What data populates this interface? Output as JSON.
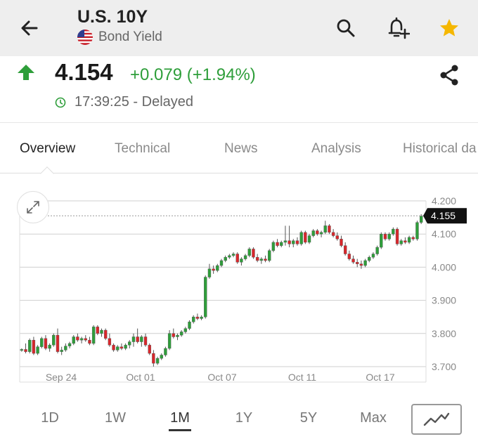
{
  "header": {
    "title": "U.S. 10Y",
    "subtitle": "Bond Yield",
    "icons": [
      "back-arrow-icon",
      "search-icon",
      "add-alert-bell-icon",
      "star-icon"
    ],
    "star_color": "#f5b700"
  },
  "quote": {
    "price": "4.154",
    "change": "+0.079 (+1.94%)",
    "time": "17:39:25 - Delayed",
    "up_color": "#2e9e3a"
  },
  "tabs": [
    {
      "label": "Overview",
      "active": true
    },
    {
      "label": "Technical",
      "active": false
    },
    {
      "label": "News",
      "active": false
    },
    {
      "label": "Analysis",
      "active": false
    },
    {
      "label": "Historical da",
      "active": false
    }
  ],
  "chart_data": {
    "type": "candlestick",
    "ylim": [
      3.68,
      4.22
    ],
    "yticks": [
      "4.200",
      "4.100",
      "4.000",
      "3.900",
      "3.800",
      "3.700"
    ],
    "xticks": [
      "Sep 24",
      "Oct 01",
      "Oct 07",
      "Oct 11",
      "Oct 17"
    ],
    "current_value": "4.155",
    "up_color": "#2e9e3a",
    "down_color": "#d9262b",
    "candles": [
      [
        3.75,
        3.755,
        3.745,
        3.752
      ],
      [
        3.752,
        3.77,
        3.74,
        3.745
      ],
      [
        3.745,
        3.785,
        3.74,
        3.78
      ],
      [
        3.78,
        3.79,
        3.735,
        3.74
      ],
      [
        3.74,
        3.765,
        3.735,
        3.76
      ],
      [
        3.76,
        3.79,
        3.755,
        3.785
      ],
      [
        3.785,
        3.795,
        3.75,
        3.755
      ],
      [
        3.755,
        3.77,
        3.745,
        3.765
      ],
      [
        3.765,
        3.8,
        3.76,
        3.795
      ],
      [
        3.795,
        3.815,
        3.74,
        3.745
      ],
      [
        3.745,
        3.76,
        3.735,
        3.75
      ],
      [
        3.75,
        3.77,
        3.745,
        3.762
      ],
      [
        3.762,
        3.775,
        3.755,
        3.77
      ],
      [
        3.77,
        3.795,
        3.765,
        3.79
      ],
      [
        3.79,
        3.8,
        3.775,
        3.78
      ],
      [
        3.78,
        3.79,
        3.77,
        3.785
      ],
      [
        3.785,
        3.795,
        3.775,
        3.78
      ],
      [
        3.78,
        3.79,
        3.765,
        3.77
      ],
      [
        3.77,
        3.825,
        3.765,
        3.82
      ],
      [
        3.82,
        3.825,
        3.795,
        3.8
      ],
      [
        3.8,
        3.815,
        3.79,
        3.81
      ],
      [
        3.81,
        3.815,
        3.78,
        3.785
      ],
      [
        3.785,
        3.8,
        3.76,
        3.765
      ],
      [
        3.765,
        3.77,
        3.745,
        3.75
      ],
      [
        3.75,
        3.765,
        3.745,
        3.76
      ],
      [
        3.76,
        3.77,
        3.75,
        3.755
      ],
      [
        3.755,
        3.77,
        3.75,
        3.765
      ],
      [
        3.765,
        3.78,
        3.755,
        3.775
      ],
      [
        3.775,
        3.8,
        3.76,
        3.79
      ],
      [
        3.79,
        3.815,
        3.77,
        3.775
      ],
      [
        3.775,
        3.795,
        3.76,
        3.79
      ],
      [
        3.79,
        3.8,
        3.76,
        3.765
      ],
      [
        3.765,
        3.77,
        3.735,
        3.74
      ],
      [
        3.74,
        3.75,
        3.7,
        3.71
      ],
      [
        3.71,
        3.73,
        3.705,
        3.725
      ],
      [
        3.725,
        3.74,
        3.72,
        3.735
      ],
      [
        3.735,
        3.76,
        3.73,
        3.755
      ],
      [
        3.755,
        3.81,
        3.75,
        3.8
      ],
      [
        3.8,
        3.815,
        3.785,
        3.79
      ],
      [
        3.79,
        3.8,
        3.78,
        3.795
      ],
      [
        3.795,
        3.81,
        3.79,
        3.805
      ],
      [
        3.805,
        3.82,
        3.8,
        3.815
      ],
      [
        3.815,
        3.84,
        3.81,
        3.835
      ],
      [
        3.835,
        3.855,
        3.83,
        3.85
      ],
      [
        3.85,
        3.86,
        3.84,
        3.845
      ],
      [
        3.845,
        3.855,
        3.84,
        3.85
      ],
      [
        3.85,
        3.975,
        3.845,
        3.97
      ],
      [
        3.97,
        4.01,
        3.965,
        3.995
      ],
      [
        3.995,
        4.005,
        3.98,
        3.99
      ],
      [
        3.99,
        4.01,
        3.985,
        4.005
      ],
      [
        4.005,
        4.025,
        4.0,
        4.02
      ],
      [
        4.02,
        4.035,
        4.015,
        4.03
      ],
      [
        4.03,
        4.04,
        4.025,
        4.035
      ],
      [
        4.035,
        4.045,
        4.03,
        4.04
      ],
      [
        4.04,
        4.045,
        4.01,
        4.015
      ],
      [
        4.015,
        4.03,
        4.005,
        4.025
      ],
      [
        4.025,
        4.04,
        4.02,
        4.035
      ],
      [
        4.035,
        4.06,
        4.03,
        4.055
      ],
      [
        4.055,
        4.06,
        4.025,
        4.03
      ],
      [
        4.03,
        4.04,
        4.015,
        4.02
      ],
      [
        4.02,
        4.03,
        4.01,
        4.025
      ],
      [
        4.025,
        4.035,
        4.015,
        4.02
      ],
      [
        4.02,
        4.055,
        4.015,
        4.05
      ],
      [
        4.05,
        4.08,
        4.045,
        4.075
      ],
      [
        4.075,
        4.085,
        4.06,
        4.065
      ],
      [
        4.065,
        4.08,
        4.06,
        4.075
      ],
      [
        4.075,
        4.125,
        4.065,
        4.08
      ],
      [
        4.08,
        4.125,
        4.06,
        4.07
      ],
      [
        4.07,
        4.085,
        4.06,
        4.08
      ],
      [
        4.08,
        4.09,
        4.065,
        4.07
      ],
      [
        4.07,
        4.11,
        4.065,
        4.105
      ],
      [
        4.105,
        4.11,
        4.07,
        4.075
      ],
      [
        4.075,
        4.1,
        4.07,
        4.095
      ],
      [
        4.095,
        4.115,
        4.09,
        4.11
      ],
      [
        4.11,
        4.115,
        4.095,
        4.1
      ],
      [
        4.1,
        4.11,
        4.09,
        4.105
      ],
      [
        4.105,
        4.14,
        4.1,
        4.125
      ],
      [
        4.125,
        4.13,
        4.1,
        4.105
      ],
      [
        4.105,
        4.115,
        4.09,
        4.095
      ],
      [
        4.095,
        4.105,
        4.08,
        4.085
      ],
      [
        4.085,
        4.095,
        4.06,
        4.065
      ],
      [
        4.065,
        4.075,
        4.035,
        4.04
      ],
      [
        4.04,
        4.05,
        4.02,
        4.025
      ],
      [
        4.025,
        4.035,
        4.01,
        4.015
      ],
      [
        4.015,
        4.025,
        4.0,
        4.01
      ],
      [
        4.01,
        4.02,
        3.995,
        4.005
      ],
      [
        4.005,
        4.025,
        4.0,
        4.02
      ],
      [
        4.02,
        4.035,
        4.015,
        4.03
      ],
      [
        4.03,
        4.045,
        4.025,
        4.04
      ],
      [
        4.04,
        4.065,
        4.035,
        4.06
      ],
      [
        4.06,
        4.105,
        4.055,
        4.1
      ],
      [
        4.1,
        4.105,
        4.08,
        4.085
      ],
      [
        4.085,
        4.105,
        4.08,
        4.1
      ],
      [
        4.1,
        4.12,
        4.095,
        4.115
      ],
      [
        4.115,
        4.12,
        4.065,
        4.07
      ],
      [
        4.07,
        4.085,
        4.065,
        4.08
      ],
      [
        4.08,
        4.09,
        4.07,
        4.075
      ],
      [
        4.075,
        4.095,
        4.07,
        4.09
      ],
      [
        4.09,
        4.095,
        4.08,
        4.085
      ],
      [
        4.085,
        4.14,
        4.08,
        4.135
      ],
      [
        4.135,
        4.16,
        4.13,
        4.154
      ]
    ]
  },
  "ranges": [
    {
      "label": "1D",
      "active": false
    },
    {
      "label": "1W",
      "active": false
    },
    {
      "label": "1M",
      "active": true
    },
    {
      "label": "1Y",
      "active": false
    },
    {
      "label": "5Y",
      "active": false
    },
    {
      "label": "Max",
      "active": false
    }
  ]
}
